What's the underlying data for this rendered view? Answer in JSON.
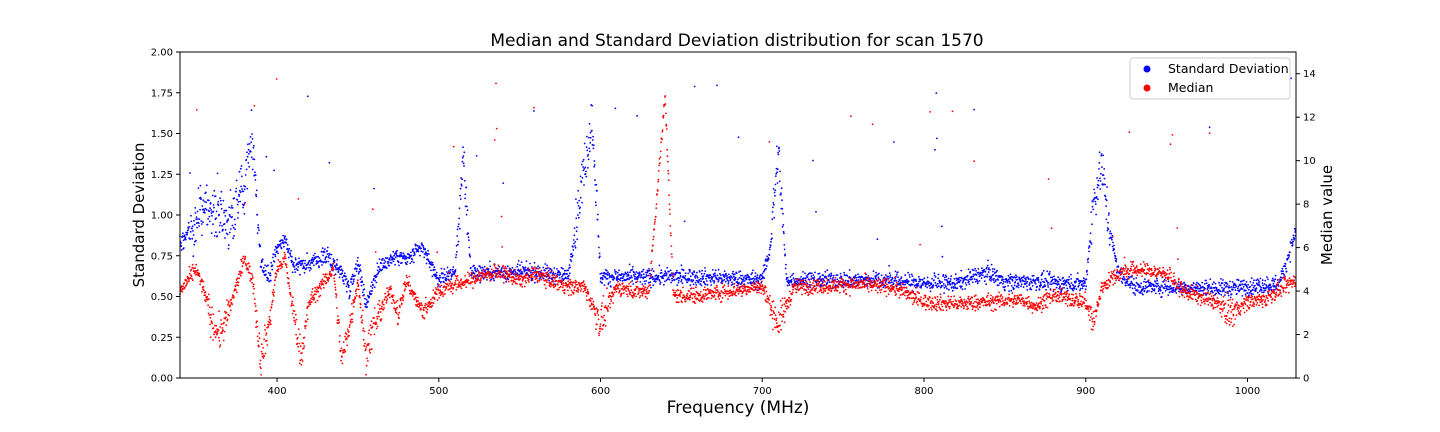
{
  "chart_data": {
    "type": "scatter",
    "title": "Median and Standard Deviation distribution for scan 1570",
    "xlabel": "Frequency (MHz)",
    "ylabel_left": "Standard Deviation",
    "ylabel_right": "Median value",
    "xlim": [
      340,
      1030
    ],
    "ylim_left": [
      0,
      2.0
    ],
    "ylim_right": [
      0,
      15
    ],
    "x_ticks": [
      400,
      500,
      600,
      700,
      800,
      900,
      1000
    ],
    "y_left_ticks": [
      "0.00",
      "0.25",
      "0.50",
      "0.75",
      "1.00",
      "1.25",
      "1.50",
      "1.75",
      "2.00"
    ],
    "y_right_ticks": [
      "0",
      "2",
      "4",
      "6",
      "8",
      "10",
      "12",
      "14"
    ],
    "grid": false,
    "legend_position": "top-right",
    "series": [
      {
        "name": "Standard Deviation",
        "axis": "left",
        "color": "#0000ff",
        "profile": [
          [
            340,
            0.82
          ],
          [
            350,
            0.95
          ],
          [
            355,
            1.05
          ],
          [
            360,
            1.0
          ],
          [
            370,
            0.95
          ],
          [
            380,
            1.2
          ],
          [
            384,
            1.5
          ],
          [
            386,
            1.3
          ],
          [
            390,
            0.7
          ],
          [
            395,
            0.62
          ],
          [
            400,
            0.8
          ],
          [
            405,
            0.85
          ],
          [
            410,
            0.7
          ],
          [
            420,
            0.7
          ],
          [
            430,
            0.75
          ],
          [
            440,
            0.65
          ],
          [
            445,
            0.55
          ],
          [
            450,
            0.72
          ],
          [
            455,
            0.45
          ],
          [
            460,
            0.6
          ],
          [
            465,
            0.7
          ],
          [
            475,
            0.75
          ],
          [
            480,
            0.72
          ],
          [
            490,
            0.8
          ],
          [
            500,
            0.6
          ],
          [
            510,
            0.65
          ],
          [
            515,
            1.35
          ],
          [
            520,
            0.65
          ],
          [
            540,
            0.65
          ],
          [
            560,
            0.65
          ],
          [
            580,
            0.62
          ],
          [
            590,
            1.3
          ],
          [
            595,
            1.58
          ],
          [
            600,
            0.62
          ],
          [
            620,
            0.62
          ],
          [
            640,
            0.62
          ],
          [
            660,
            0.62
          ],
          [
            680,
            0.61
          ],
          [
            700,
            0.6
          ],
          [
            705,
            0.8
          ],
          [
            710,
            1.4
          ],
          [
            715,
            0.6
          ],
          [
            730,
            0.6
          ],
          [
            760,
            0.6
          ],
          [
            780,
            0.6
          ],
          [
            800,
            0.58
          ],
          [
            820,
            0.58
          ],
          [
            830,
            0.62
          ],
          [
            840,
            0.65
          ],
          [
            850,
            0.59
          ],
          [
            870,
            0.59
          ],
          [
            890,
            0.58
          ],
          [
            900,
            0.58
          ],
          [
            905,
            1.1
          ],
          [
            910,
            1.3
          ],
          [
            915,
            0.9
          ],
          [
            920,
            0.65
          ],
          [
            930,
            0.56
          ],
          [
            950,
            0.56
          ],
          [
            970,
            0.55
          ],
          [
            990,
            0.55
          ],
          [
            1000,
            0.56
          ],
          [
            1020,
            0.58
          ],
          [
            1030,
            0.9
          ]
        ]
      },
      {
        "name": "Median",
        "axis": "right",
        "color": "#ff0000",
        "profile": [
          [
            340,
            4.0
          ],
          [
            345,
            4.5
          ],
          [
            350,
            5.0
          ],
          [
            355,
            4.0
          ],
          [
            360,
            2.5
          ],
          [
            365,
            2.0
          ],
          [
            370,
            3.0
          ],
          [
            380,
            5.5
          ],
          [
            385,
            4.5
          ],
          [
            390,
            0.8
          ],
          [
            395,
            2.5
          ],
          [
            400,
            5.0
          ],
          [
            405,
            5.5
          ],
          [
            410,
            3.0
          ],
          [
            415,
            1.0
          ],
          [
            420,
            3.5
          ],
          [
            430,
            4.5
          ],
          [
            435,
            5.0
          ],
          [
            440,
            0.8
          ],
          [
            445,
            2.5
          ],
          [
            450,
            4.5
          ],
          [
            455,
            1.0
          ],
          [
            460,
            2.5
          ],
          [
            470,
            4.0
          ],
          [
            475,
            3.0
          ],
          [
            480,
            4.5
          ],
          [
            490,
            3.0
          ],
          [
            500,
            4.0
          ],
          [
            510,
            4.3
          ],
          [
            520,
            4.5
          ],
          [
            530,
            4.8
          ],
          [
            540,
            4.8
          ],
          [
            550,
            4.5
          ],
          [
            560,
            4.8
          ],
          [
            570,
            4.5
          ],
          [
            580,
            4.2
          ],
          [
            590,
            4.2
          ],
          [
            600,
            2.5
          ],
          [
            610,
            4.2
          ],
          [
            620,
            4.0
          ],
          [
            630,
            4.0
          ],
          [
            640,
            13.0
          ],
          [
            645,
            3.8
          ],
          [
            660,
            3.8
          ],
          [
            680,
            4.0
          ],
          [
            700,
            4.2
          ],
          [
            710,
            2.5
          ],
          [
            720,
            4.2
          ],
          [
            760,
            4.3
          ],
          [
            780,
            4.2
          ],
          [
            800,
            3.5
          ],
          [
            820,
            3.4
          ],
          [
            840,
            3.5
          ],
          [
            860,
            3.6
          ],
          [
            870,
            3.3
          ],
          [
            880,
            3.8
          ],
          [
            900,
            3.5
          ],
          [
            905,
            2.5
          ],
          [
            910,
            4.2
          ],
          [
            920,
            4.8
          ],
          [
            930,
            5.0
          ],
          [
            950,
            4.8
          ],
          [
            960,
            4.0
          ],
          [
            980,
            3.5
          ],
          [
            990,
            3.0
          ],
          [
            1000,
            3.5
          ],
          [
            1010,
            3.6
          ],
          [
            1030,
            4.5
          ]
        ]
      }
    ]
  }
}
